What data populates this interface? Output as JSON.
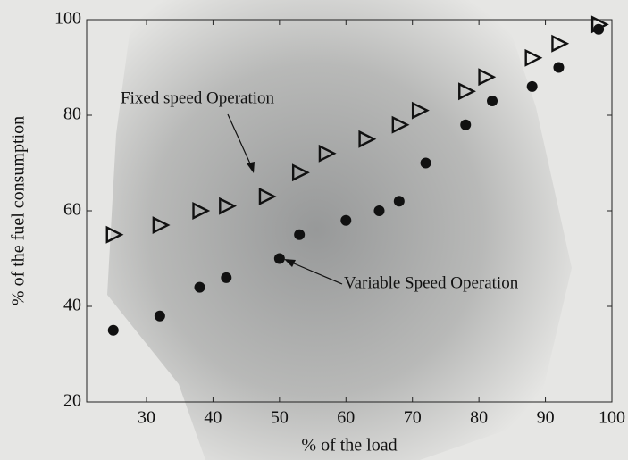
{
  "chart_data": {
    "type": "scatter",
    "xlabel": "% of the load",
    "ylabel": "% of the fuel consumption",
    "xlim": [
      21,
      100
    ],
    "ylim": [
      20,
      100
    ],
    "xticks": [
      30,
      40,
      50,
      60,
      70,
      80,
      90,
      100
    ],
    "yticks": [
      20,
      40,
      60,
      80,
      100
    ],
    "series": [
      {
        "name": "Fixed speed Operation",
        "color": "#111111",
        "marker": "triangle",
        "x": [
          25,
          32,
          38,
          42,
          48,
          53,
          57,
          63,
          68,
          71,
          78,
          81,
          88,
          92,
          98
        ],
        "values": [
          55,
          57,
          60,
          61,
          63,
          68,
          72,
          75,
          78,
          81,
          85,
          88,
          92,
          95,
          99
        ]
      },
      {
        "name": "Variable Speed Operation",
        "color": "#111111",
        "marker": "circle",
        "x": [
          25,
          32,
          38,
          42,
          50,
          53,
          60,
          65,
          68,
          72,
          78,
          82,
          88,
          92,
          98
        ],
        "values": [
          35,
          38,
          44,
          46,
          50,
          55,
          58,
          60,
          62,
          70,
          78,
          83,
          86,
          90,
          98
        ]
      }
    ]
  }
}
